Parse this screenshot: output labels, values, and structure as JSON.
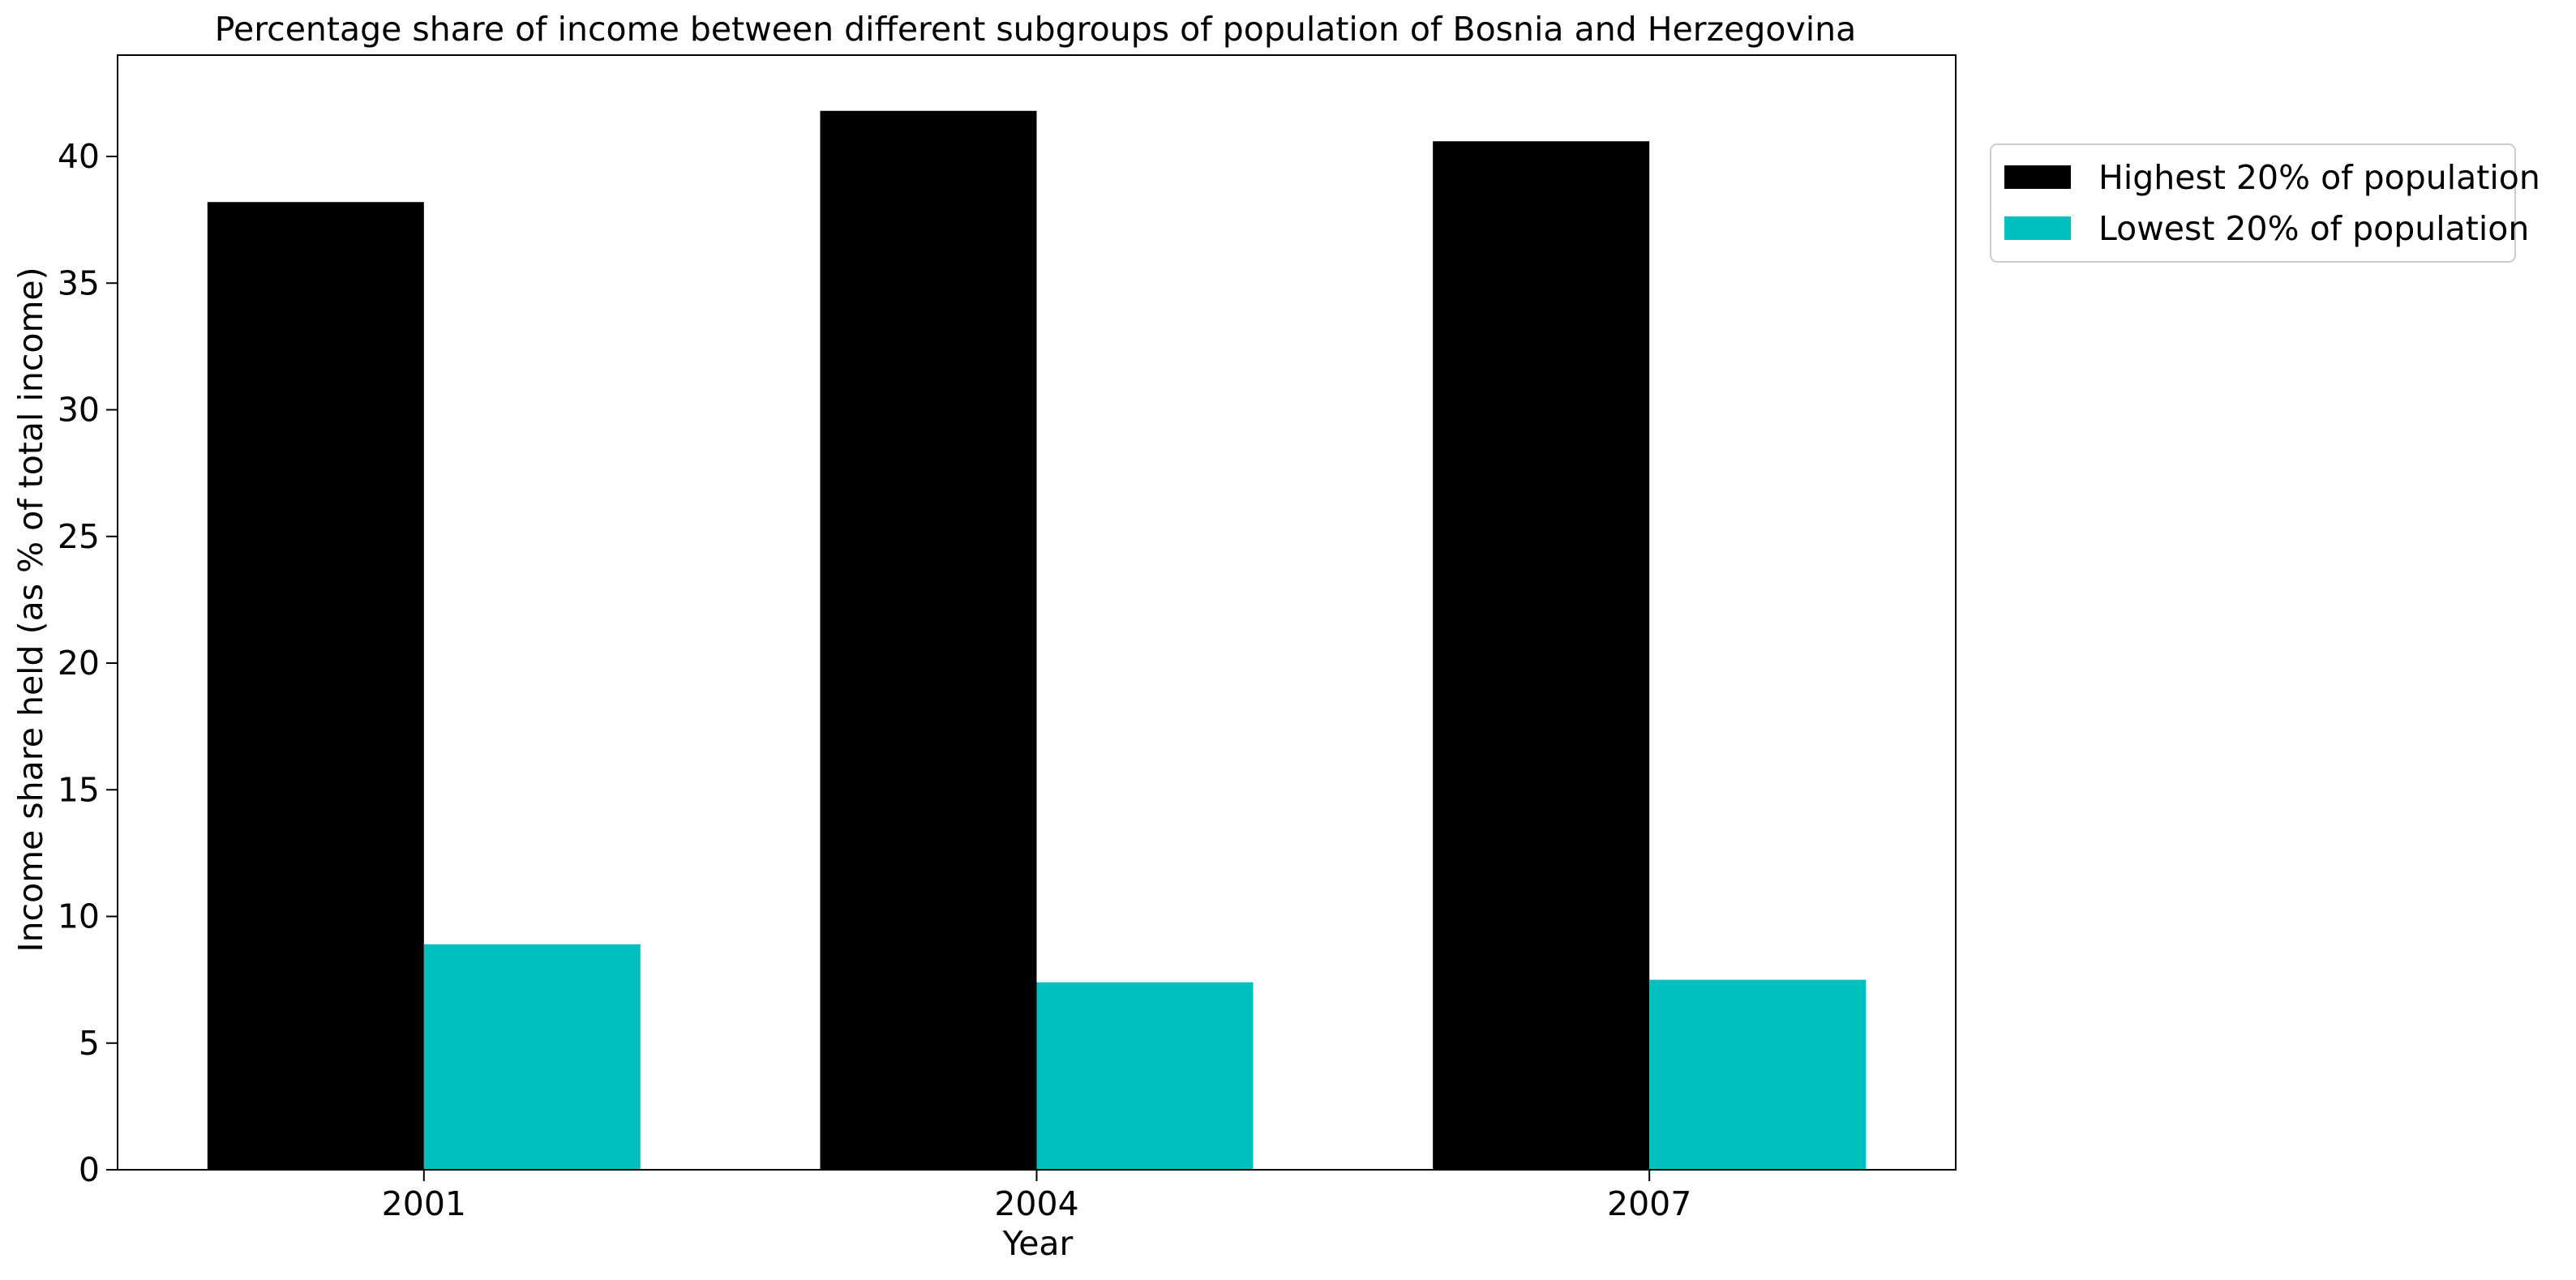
{
  "chart_data": {
    "type": "bar",
    "title": "Percentage share of income between different subgroups of population of Bosnia and Herzegovina",
    "xlabel": "Year",
    "ylabel": "Income share held (as % of total income)",
    "categories": [
      "2001",
      "2004",
      "2007"
    ],
    "series": [
      {
        "name": "Highest 20% of population",
        "color": "#000000",
        "values": [
          38.2,
          41.8,
          40.6
        ]
      },
      {
        "name": "Lowest 20% of population",
        "color": "#00BFBF",
        "values": [
          8.9,
          7.4,
          7.5
        ]
      }
    ],
    "ylim": [
      0,
      44
    ],
    "yticks": [
      0,
      5,
      10,
      15,
      20,
      25,
      30,
      35,
      40
    ],
    "grid": false,
    "legend": "top-right, outside plot"
  }
}
